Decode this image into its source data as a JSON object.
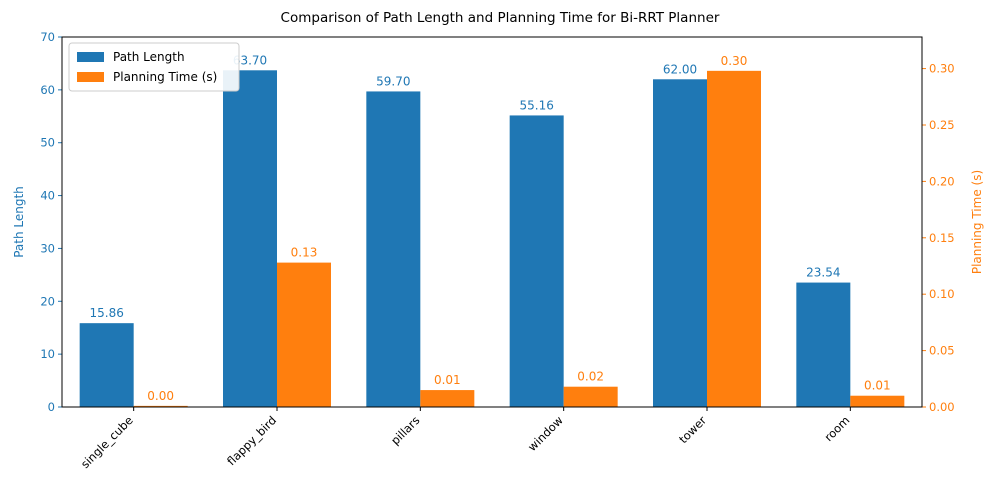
{
  "chart_data": {
    "type": "bar",
    "title": "Comparison of Path Length and Planning Time for Bi-RRT Planner",
    "categories": [
      "single_cube",
      "flappy_bird",
      "pillars",
      "window",
      "tower",
      "room"
    ],
    "series": [
      {
        "name": "Path Length",
        "axis": "left",
        "color": "#1f77b4",
        "values": [
          15.86,
          63.7,
          59.7,
          55.16,
          62.0,
          23.54
        ],
        "labels": [
          "15.86",
          "63.70",
          "59.70",
          "55.16",
          "62.00",
          "23.54"
        ]
      },
      {
        "name": "Planning Time (s)",
        "axis": "right",
        "color": "#ff7f0e",
        "values": [
          0.001,
          0.128,
          0.015,
          0.018,
          0.298,
          0.01
        ],
        "labels": [
          "0.00",
          "0.13",
          "0.01",
          "0.02",
          "0.30",
          "0.01"
        ]
      }
    ],
    "ylabel_left": "Path Length",
    "ylabel_right": "Planning Time (s)",
    "ylim_left": [
      0,
      70
    ],
    "ylim_right": [
      0,
      0.328
    ],
    "yticks_left": [
      "0",
      "10",
      "20",
      "30",
      "40",
      "50",
      "60",
      "70"
    ],
    "yticks_right": [
      "0.00",
      "0.05",
      "0.10",
      "0.15",
      "0.20",
      "0.25",
      "0.30"
    ],
    "legend_position": "top-left",
    "grid": false
  }
}
